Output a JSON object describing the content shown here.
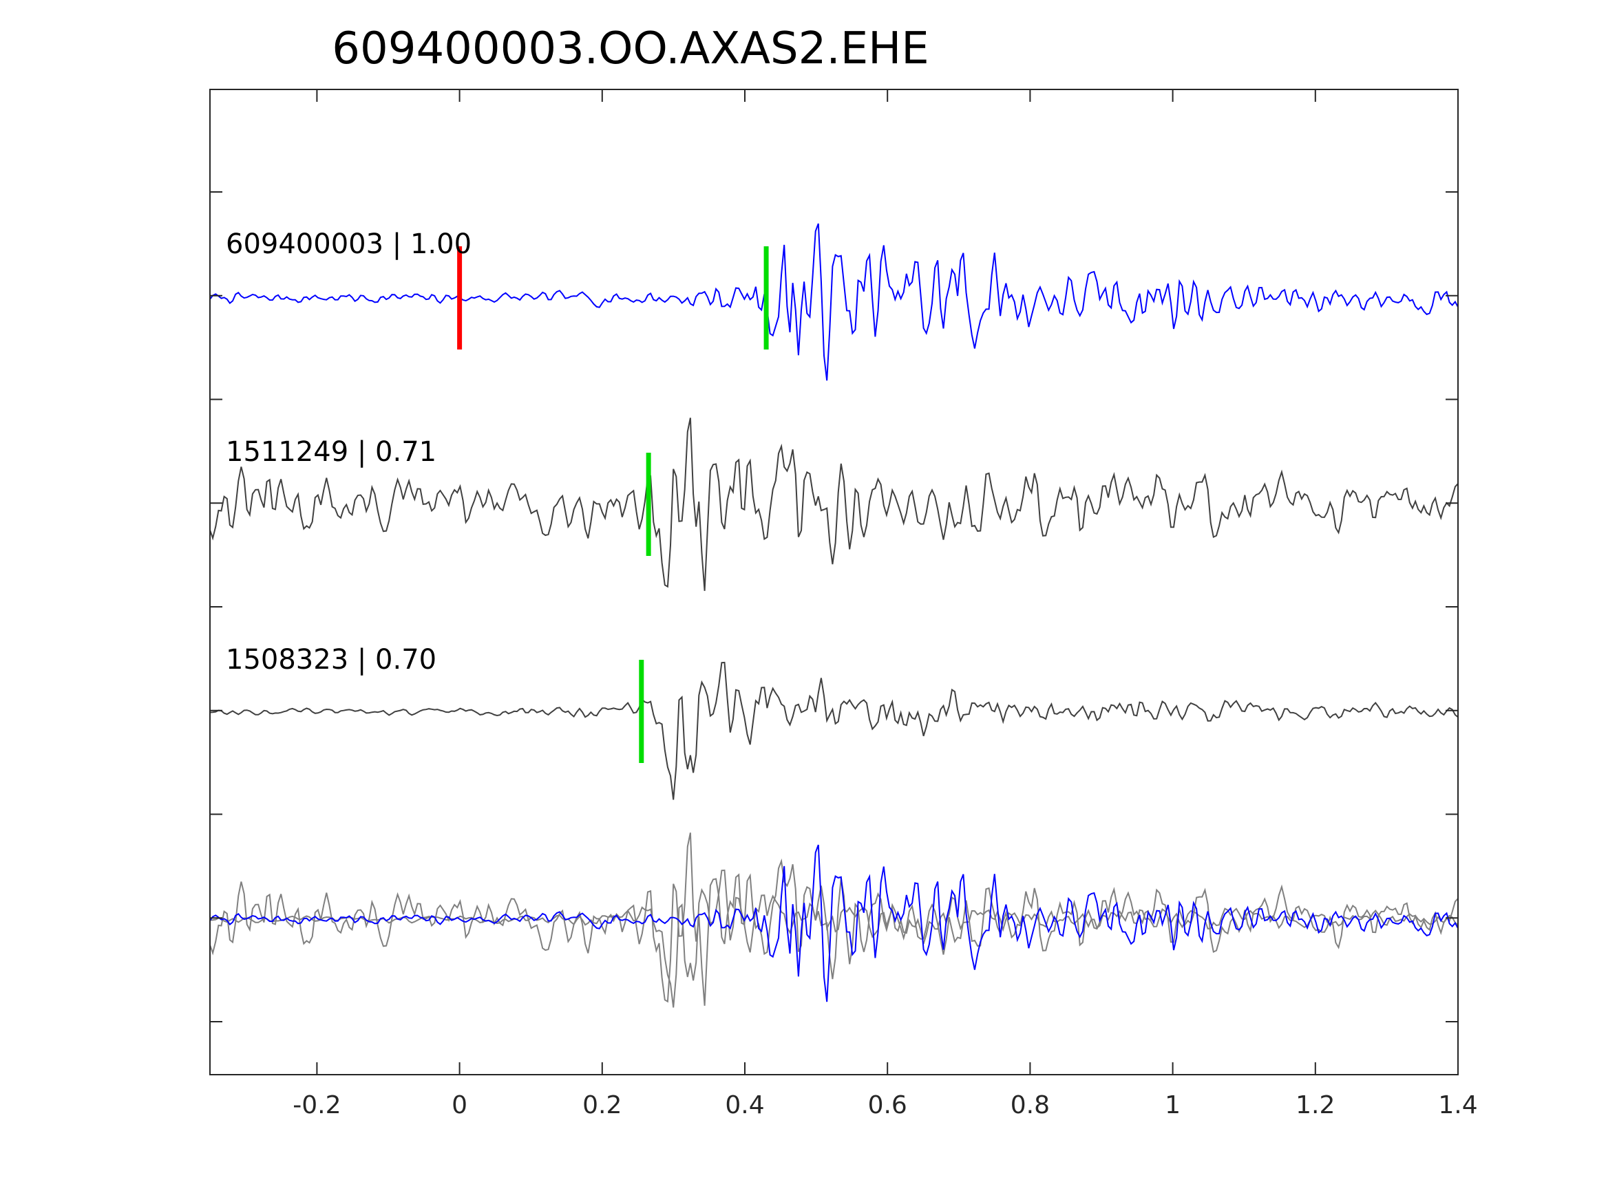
{
  "chart_data": {
    "type": "line",
    "title": "609400003.OO.AXAS2.EHE",
    "xlabel": "",
    "ylabel": "",
    "xlim": [
      -0.35,
      1.4
    ],
    "xticks": [
      -0.2,
      0,
      0.2,
      0.4,
      0.6,
      0.8,
      1,
      1.2,
      1.4
    ],
    "xtick_labels": [
      "-0.2",
      "0",
      "0.2",
      "0.4",
      "0.6",
      "0.8",
      "1",
      "1.2",
      "1.4"
    ],
    "yticks_count": 9,
    "ytick_labels_shown": false,
    "grid": false,
    "colors": {
      "template": "#0000ff",
      "match": "#404040",
      "overlay_match": "#808080",
      "origin_pick": "#ff0000",
      "phase_pick": "#00dd00"
    },
    "traces": [
      {
        "label": "609400003 | 1.00",
        "color": "#0000ff",
        "origin_pick_time": 0.0,
        "phase_pick_time": 0.43,
        "envelope": [
          [
            -0.35,
            0.06
          ],
          [
            0.0,
            0.06
          ],
          [
            0.15,
            0.07
          ],
          [
            0.3,
            0.12
          ],
          [
            0.38,
            0.18
          ],
          [
            0.43,
            0.4
          ],
          [
            0.46,
            1.0
          ],
          [
            0.55,
            0.7
          ],
          [
            0.62,
            0.55
          ],
          [
            0.7,
            0.9
          ],
          [
            0.75,
            0.5
          ],
          [
            0.85,
            0.3
          ],
          [
            0.95,
            0.35
          ],
          [
            1.0,
            0.4
          ],
          [
            1.1,
            0.18
          ],
          [
            1.25,
            0.18
          ],
          [
            1.4,
            0.15
          ]
        ]
      },
      {
        "label": "1511249 | 0.71",
        "color": "#404040",
        "phase_pick_time": 0.265,
        "envelope": [
          [
            -0.35,
            0.35
          ],
          [
            -0.2,
            0.35
          ],
          [
            0.0,
            0.3
          ],
          [
            0.15,
            0.3
          ],
          [
            0.24,
            0.4
          ],
          [
            0.26,
            0.55
          ],
          [
            0.3,
            0.9
          ],
          [
            0.33,
            1.0
          ],
          [
            0.37,
            0.7
          ],
          [
            0.42,
            0.4
          ],
          [
            0.48,
            0.85
          ],
          [
            0.52,
            0.6
          ],
          [
            0.6,
            0.35
          ],
          [
            0.8,
            0.45
          ],
          [
            1.0,
            0.3
          ],
          [
            1.1,
            0.4
          ],
          [
            1.2,
            0.25
          ],
          [
            1.4,
            0.2
          ]
        ]
      },
      {
        "label": "1508323 | 0.70",
        "color": "#404040",
        "phase_pick_time": 0.255,
        "envelope": [
          [
            -0.35,
            0.03
          ],
          [
            0.0,
            0.04
          ],
          [
            0.15,
            0.06
          ],
          [
            0.24,
            0.12
          ],
          [
            0.26,
            0.25
          ],
          [
            0.3,
            0.95
          ],
          [
            0.34,
            1.0
          ],
          [
            0.38,
            0.55
          ],
          [
            0.45,
            0.45
          ],
          [
            0.5,
            0.45
          ],
          [
            0.6,
            0.3
          ],
          [
            0.7,
            0.25
          ],
          [
            0.8,
            0.2
          ],
          [
            1.0,
            0.15
          ],
          [
            1.2,
            0.1
          ],
          [
            1.4,
            0.1
          ]
        ]
      }
    ]
  }
}
